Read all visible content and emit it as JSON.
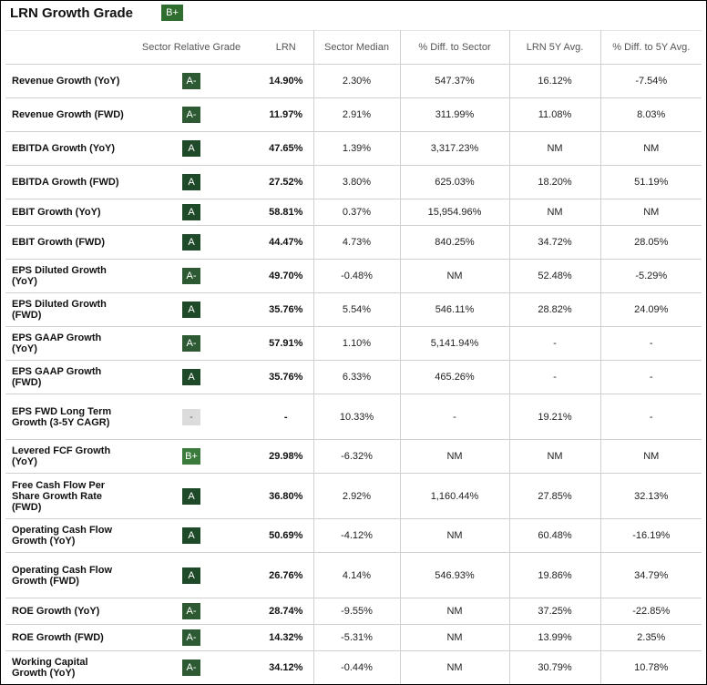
{
  "header": {
    "title": "LRN Growth Grade",
    "overall_grade": "B+"
  },
  "columns": [
    "",
    "Sector Relative Grade",
    "LRN",
    "Sector Median",
    "% Diff. to Sector",
    "LRN 5Y Avg.",
    "% Diff. to 5Y Avg."
  ],
  "colors": {
    "grade_a": "#1f4a2a",
    "grade_a_minus": "#2d5a33",
    "grade_b_plus": "#3a7a3a",
    "grade_none": "#dcdcdc"
  },
  "rows": [
    {
      "metric": "Revenue Growth (YoY)",
      "grade": "A-",
      "lrn": "14.90%",
      "sector_median": "2.30%",
      "diff_sector": "547.37%",
      "avg5y": "16.12%",
      "diff_5y": "-7.54%"
    },
    {
      "metric": "Revenue Growth (FWD)",
      "grade": "A-",
      "lrn": "11.97%",
      "sector_median": "2.91%",
      "diff_sector": "311.99%",
      "avg5y": "11.08%",
      "diff_5y": "8.03%"
    },
    {
      "metric": "EBITDA Growth (YoY)",
      "grade": "A",
      "lrn": "47.65%",
      "sector_median": "1.39%",
      "diff_sector": "3,317.23%",
      "avg5y": "NM",
      "diff_5y": "NM"
    },
    {
      "metric": "EBITDA Growth (FWD)",
      "grade": "A",
      "lrn": "27.52%",
      "sector_median": "3.80%",
      "diff_sector": "625.03%",
      "avg5y": "18.20%",
      "diff_5y": "51.19%"
    },
    {
      "metric": "EBIT Growth (YoY)",
      "grade": "A",
      "lrn": "58.81%",
      "sector_median": "0.37%",
      "diff_sector": "15,954.96%",
      "avg5y": "NM",
      "diff_5y": "NM"
    },
    {
      "metric": "EBIT Growth (FWD)",
      "grade": "A",
      "lrn": "44.47%",
      "sector_median": "4.73%",
      "diff_sector": "840.25%",
      "avg5y": "34.72%",
      "diff_5y": "28.05%"
    },
    {
      "metric": "EPS Diluted Growth (YoY)",
      "grade": "A-",
      "lrn": "49.70%",
      "sector_median": "-0.48%",
      "diff_sector": "NM",
      "avg5y": "52.48%",
      "diff_5y": "-5.29%"
    },
    {
      "metric": "EPS Diluted Growth (FWD)",
      "grade": "A",
      "lrn": "35.76%",
      "sector_median": "5.54%",
      "diff_sector": "546.11%",
      "avg5y": "28.82%",
      "diff_5y": "24.09%"
    },
    {
      "metric": "EPS GAAP Growth (YoY)",
      "grade": "A-",
      "lrn": "57.91%",
      "sector_median": "1.10%",
      "diff_sector": "5,141.94%",
      "avg5y": "-",
      "diff_5y": "-"
    },
    {
      "metric": "EPS GAAP Growth (FWD)",
      "grade": "A",
      "lrn": "35.76%",
      "sector_median": "6.33%",
      "diff_sector": "465.26%",
      "avg5y": "-",
      "diff_5y": "-"
    },
    {
      "metric": "EPS FWD Long Term Growth (3-5Y CAGR)",
      "grade": "-",
      "lrn": "-",
      "sector_median": "10.33%",
      "diff_sector": "-",
      "avg5y": "19.21%",
      "diff_5y": "-"
    },
    {
      "metric": "Levered FCF Growth (YoY)",
      "grade": "B+",
      "lrn": "29.98%",
      "sector_median": "-6.32%",
      "diff_sector": "NM",
      "avg5y": "NM",
      "diff_5y": "NM"
    },
    {
      "metric": "Free Cash Flow Per Share Growth Rate (FWD)",
      "grade": "A",
      "lrn": "36.80%",
      "sector_median": "2.92%",
      "diff_sector": "1,160.44%",
      "avg5y": "27.85%",
      "diff_5y": "32.13%"
    },
    {
      "metric": "Operating Cash Flow Growth (YoY)",
      "grade": "A",
      "lrn": "50.69%",
      "sector_median": "-4.12%",
      "diff_sector": "NM",
      "avg5y": "60.48%",
      "diff_5y": "-16.19%"
    },
    {
      "metric": "Operating Cash Flow Growth (FWD)",
      "grade": "A",
      "lrn": "26.76%",
      "sector_median": "4.14%",
      "diff_sector": "546.93%",
      "avg5y": "19.86%",
      "diff_5y": "34.79%"
    },
    {
      "metric": "ROE Growth (YoY)",
      "grade": "A-",
      "lrn": "28.74%",
      "sector_median": "-9.55%",
      "diff_sector": "NM",
      "avg5y": "37.25%",
      "diff_5y": "-22.85%"
    },
    {
      "metric": "ROE Growth (FWD)",
      "grade": "A-",
      "lrn": "14.32%",
      "sector_median": "-5.31%",
      "diff_sector": "NM",
      "avg5y": "13.99%",
      "diff_5y": "2.35%"
    },
    {
      "metric": "Working Capital Growth (YoY)",
      "grade": "A-",
      "lrn": "34.12%",
      "sector_median": "-0.44%",
      "diff_sector": "NM",
      "avg5y": "30.79%",
      "diff_5y": "10.78%"
    }
  ]
}
